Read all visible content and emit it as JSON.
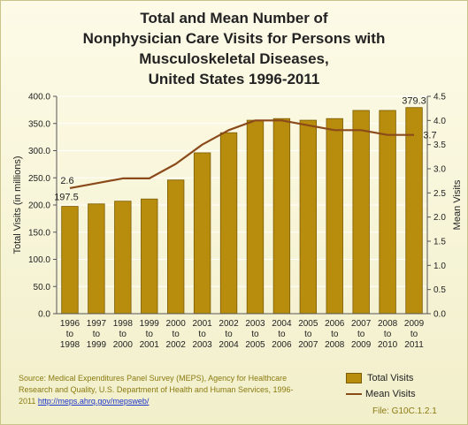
{
  "title_lines": [
    "Total and Mean Number of",
    "Nonphysician Care Visits for Persons with",
    "Musculoskeletal Diseases,",
    "United States 1996-2011"
  ],
  "source": {
    "text": "Source: Medical Expenditures Panel Survey (MEPS), Agency for Healthcare Research and Quality, U.S. Department of Health and Human Services, 1996-2011 ",
    "link": "http://meps.ahrq.gov/mepsweb/"
  },
  "file_label": "File: G10C.1.2.1",
  "colors": {
    "bar": "#b88c0c",
    "bar_edge": "#7a5c06",
    "line": "#8b4a1a",
    "grid": "#ffffff"
  },
  "chart_data": {
    "type": "bar+line",
    "title": "Total and Mean Number of Nonphysician Care Visits for Persons with Musculoskeletal Diseases, United States 1996-2011",
    "categories": [
      [
        "1996",
        "to",
        "1998"
      ],
      [
        "1997",
        "to",
        "1999"
      ],
      [
        "1998",
        "to",
        "2000"
      ],
      [
        "1999",
        "to",
        "2001"
      ],
      [
        "2000",
        "to",
        "2002"
      ],
      [
        "2001",
        "to",
        "2003"
      ],
      [
        "2002",
        "to",
        "2004"
      ],
      [
        "2003",
        "to",
        "2005"
      ],
      [
        "2004",
        "to",
        "2006"
      ],
      [
        "2005",
        "to",
        "2007"
      ],
      [
        "2006",
        "to",
        "2008"
      ],
      [
        "2007",
        "to",
        "2009"
      ],
      [
        "2008",
        "to",
        "2010"
      ],
      [
        "2009",
        "to",
        "2011"
      ]
    ],
    "series": [
      {
        "name": "Total Visits",
        "type": "bar",
        "axis": "left",
        "values": [
          197.5,
          202,
          207,
          211,
          246,
          296,
          333,
          356,
          359,
          356,
          359,
          374,
          374,
          379.3
        ]
      },
      {
        "name": "Mean Visits",
        "type": "line",
        "axis": "right",
        "values": [
          2.6,
          2.7,
          2.8,
          2.8,
          3.1,
          3.5,
          3.8,
          4.0,
          4.0,
          3.9,
          3.8,
          3.8,
          3.7,
          3.7
        ]
      }
    ],
    "data_labels": [
      {
        "series": 0,
        "index": 0,
        "text": "197.5"
      },
      {
        "series": 1,
        "index": 0,
        "text": "2.6"
      },
      {
        "series": 0,
        "index": 13,
        "text": "379.3"
      },
      {
        "series": 1,
        "index": 13,
        "text": "3.7"
      }
    ],
    "ylabel_left": "Total Visits (in millions)",
    "ylabel_right": "Mean Visits",
    "ylim_left": [
      0,
      400
    ],
    "ylim_right": [
      0,
      4.5
    ],
    "yticks_left": [
      "0.0",
      "50.0",
      "100.0",
      "150.0",
      "200.0",
      "250.0",
      "300.0",
      "350.0",
      "400.0"
    ],
    "yticks_right": [
      "0.0",
      "0.5",
      "1.0",
      "1.5",
      "2.0",
      "2.5",
      "3.0",
      "3.5",
      "4.0",
      "4.5"
    ],
    "grid": true,
    "legend_position": "bottom-right"
  }
}
